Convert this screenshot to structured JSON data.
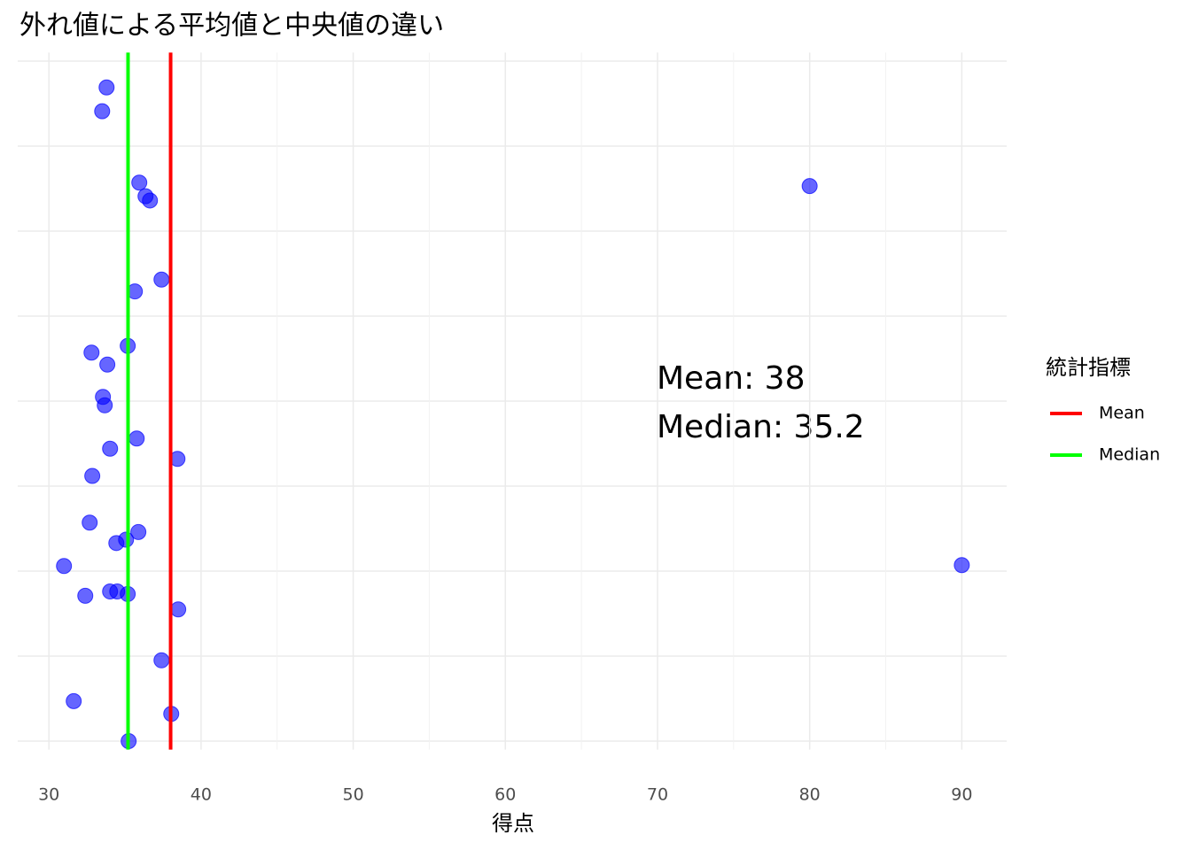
{
  "chart_data": {
    "type": "scatter",
    "title": "外れ値による平均値と中央値の違い",
    "x_label": "得点",
    "xlim": [
      27.95,
      92.95
    ],
    "xticks": [
      30,
      40,
      50,
      60,
      70,
      80,
      90
    ],
    "xminor": [
      35,
      45,
      55,
      65,
      75,
      85
    ],
    "ylim": [
      -0.41,
      0.41
    ],
    "ygrid": [
      -0.4,
      -0.3,
      -0.2,
      -0.1,
      0,
      0.1,
      0.2,
      0.3,
      0.4
    ],
    "grid": true,
    "points": {
      "color": "#0000ff",
      "x": [
        33.79,
        33.5,
        35.94,
        36.35,
        36.64,
        80.0,
        37.4,
        35.65,
        35.18,
        32.8,
        33.84,
        33.55,
        33.67,
        35.77,
        34.02,
        38.45,
        32.85,
        32.68,
        35.88,
        35.07,
        34.43,
        30.99,
        90.0,
        32.39,
        34.02,
        34.49,
        35.18,
        38.5,
        37.4,
        31.63,
        38.04,
        35.24
      ],
      "y": [
        0.369,
        0.341,
        0.257,
        0.241,
        0.236,
        0.253,
        0.143,
        0.129,
        0.065,
        0.057,
        0.043,
        0.005,
        -0.005,
        -0.044,
        -0.056,
        -0.068,
        -0.088,
        -0.143,
        -0.154,
        -0.163,
        -0.167,
        -0.194,
        -0.193,
        -0.229,
        -0.224,
        -0.224,
        -0.227,
        -0.245,
        -0.305,
        -0.353,
        -0.368,
        -0.4
      ]
    },
    "lines": [
      {
        "name": "Mean",
        "color": "#ff0000",
        "value": 38
      },
      {
        "name": "Median",
        "color": "#00ff00",
        "value": 35.2
      }
    ],
    "legend_title": "統計指標",
    "annotations": [
      "Mean: 38",
      "Median: 35.2"
    ]
  }
}
